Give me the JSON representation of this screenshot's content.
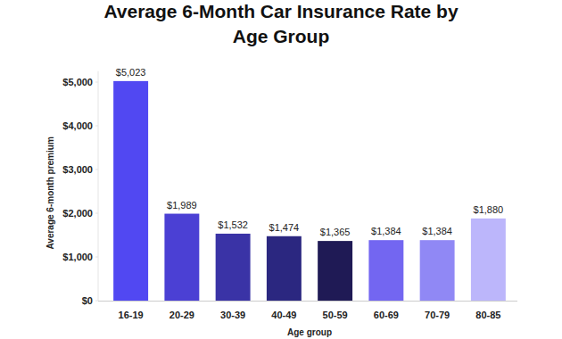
{
  "chart_data": {
    "type": "bar",
    "title": "Average 6-Month Car Insurance Rate by Age Group",
    "x_label": "Age group",
    "y_label": "Average 6-month premium",
    "categories": [
      "16-19",
      "20-29",
      "30-39",
      "40-49",
      "50-59",
      "60-69",
      "70-79",
      "80-85"
    ],
    "values": [
      5023,
      1989,
      1532,
      1474,
      1365,
      1384,
      1384,
      1880
    ],
    "value_labels": [
      "$5,023",
      "$1,989",
      "$1,532",
      "$1,474",
      "$1,365",
      "$1,384",
      "$1,384",
      "$1,880"
    ],
    "colors": [
      "#5148f2",
      "#4b40d4",
      "#3a33a6",
      "#2b2780",
      "#1f1a55",
      "#7366f1",
      "#9088f5",
      "#bcb6fb"
    ],
    "ylim": [
      0,
      5250
    ],
    "yticks": [
      {
        "value": 0,
        "label": "$0"
      },
      {
        "value": 1000,
        "label": "$1,000"
      },
      {
        "value": 2000,
        "label": "$2,000"
      },
      {
        "value": 3000,
        "label": "$3,000"
      },
      {
        "value": 4000,
        "label": "$4,000"
      },
      {
        "value": 5000,
        "label": "$5,000"
      }
    ],
    "grid": false,
    "data_labels": true
  }
}
